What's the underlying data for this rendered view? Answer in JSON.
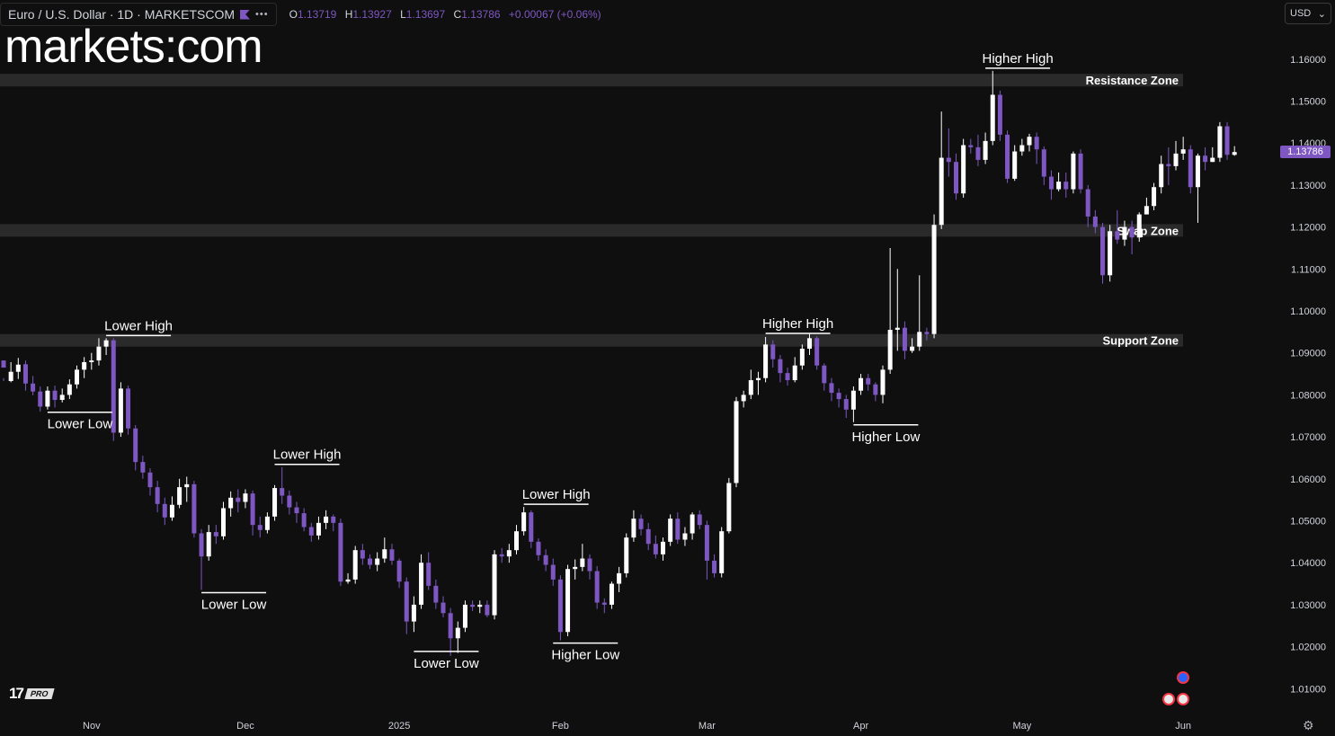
{
  "header": {
    "symbol": "Euro / U.S. Dollar · 1D · MARKETSCOM",
    "ohlc": {
      "o_label": "O",
      "o": "1.13719",
      "h_label": "H",
      "h": "1.13927",
      "l_label": "L",
      "l": "1.13697",
      "c_label": "C",
      "c": "1.13786",
      "change": "+0.00067 (+0.06%)"
    }
  },
  "logo_text": "markets:com",
  "currency_select": {
    "value": "USD",
    "icon": "chevron-down-icon"
  },
  "last_price": "1.13786",
  "branding": {
    "tv_pro": "PRO"
  },
  "colors": {
    "background": "#0f0f0f",
    "bull": "#ffffff",
    "bear": "#7e57c2",
    "zone": "#2a2a2a",
    "accent": "#7e57c2"
  },
  "chart_data": {
    "type": "candlestick",
    "title": "",
    "ylim": [
      1.0,
      1.17
    ],
    "y_ticks": [
      "1.16000",
      "1.15000",
      "1.14000",
      "1.13000",
      "1.12000",
      "1.11000",
      "1.10000",
      "1.09000",
      "1.08000",
      "1.07000",
      "1.06000",
      "1.05000",
      "1.04000",
      "1.03000",
      "1.02000",
      "1.01000"
    ],
    "x_ticks": [
      {
        "label": "Nov",
        "index": 12
      },
      {
        "label": "Dec",
        "index": 33
      },
      {
        "label": "2025",
        "index": 54
      },
      {
        "label": "Feb",
        "index": 76
      },
      {
        "label": "Mar",
        "index": 96
      },
      {
        "label": "Apr",
        "index": 117
      },
      {
        "label": "May",
        "index": 139
      },
      {
        "label": "Jun",
        "index": 161
      }
    ],
    "zones": [
      {
        "label": "Resistance Zone",
        "low": 1.1535,
        "high": 1.1565
      },
      {
        "label": "Swap Zone",
        "low": 1.1177,
        "high": 1.1207
      },
      {
        "label": "Support Zone",
        "low": 1.0915,
        "high": 1.0945
      }
    ],
    "annotations": [
      {
        "label": "Lower Low",
        "index": 6,
        "price": 1.0765,
        "pos": "below"
      },
      {
        "label": "Lower High",
        "index": 14,
        "price": 1.0935,
        "pos": "above"
      },
      {
        "label": "Lower Low",
        "index": 27,
        "price": 1.0335,
        "pos": "below"
      },
      {
        "label": "Lower High",
        "index": 37,
        "price": 1.0628,
        "pos": "above"
      },
      {
        "label": "Lower Low",
        "index": 56,
        "price": 1.0195,
        "pos": "below"
      },
      {
        "label": "Lower High",
        "index": 71,
        "price": 1.0533,
        "pos": "above"
      },
      {
        "label": "Higher Low",
        "index": 75,
        "price": 1.0215,
        "pos": "below"
      },
      {
        "label": "Higher High",
        "index": 104,
        "price": 1.094,
        "pos": "above"
      },
      {
        "label": "Higher Low",
        "index": 116,
        "price": 1.0735,
        "pos": "below"
      },
      {
        "label": "Higher High",
        "index": 134,
        "price": 1.1572,
        "pos": "above"
      }
    ],
    "candles": [
      [
        1.0882,
        1.0865,
        1.084,
        1.0833
      ],
      [
        1.0833,
        1.0855,
        1.0878,
        1.083
      ],
      [
        1.0855,
        1.0872,
        1.0888,
        1.0838
      ],
      [
        1.0873,
        1.0827,
        1.0882,
        1.081
      ],
      [
        1.0827,
        1.0808,
        1.0845,
        1.0799
      ],
      [
        1.0808,
        1.0772,
        1.082,
        1.076
      ],
      [
        1.0772,
        1.081,
        1.082,
        1.0765
      ],
      [
        1.081,
        1.0788,
        1.0822,
        1.077
      ],
      [
        1.0788,
        1.08,
        1.0815,
        1.0782
      ],
      [
        1.08,
        1.0825,
        1.0837,
        1.079
      ],
      [
        1.0825,
        1.086,
        1.087,
        1.0815
      ],
      [
        1.086,
        1.0878,
        1.089,
        1.084
      ],
      [
        1.0878,
        1.0882,
        1.09,
        1.086
      ],
      [
        1.0882,
        1.0915,
        1.0935,
        1.087
      ],
      [
        1.0915,
        1.093,
        1.0935,
        1.0895
      ],
      [
        1.093,
        1.071,
        1.0935,
        1.069
      ],
      [
        1.071,
        1.0815,
        1.083,
        1.07
      ],
      [
        1.0815,
        1.072,
        1.0822,
        1.0705
      ],
      [
        1.072,
        1.064,
        1.0728,
        1.062
      ],
      [
        1.064,
        1.0615,
        1.0655,
        1.06
      ],
      [
        1.0615,
        1.058,
        1.0625,
        1.056
      ],
      [
        1.058,
        1.054,
        1.0595,
        1.052
      ],
      [
        1.054,
        1.0508,
        1.0555,
        1.049
      ],
      [
        1.0508,
        1.0538,
        1.0558,
        1.05
      ],
      [
        1.0538,
        1.058,
        1.06,
        1.053
      ],
      [
        1.058,
        1.0587,
        1.0605,
        1.0545
      ],
      [
        1.0587,
        1.047,
        1.0595,
        1.046
      ],
      [
        1.047,
        1.0415,
        1.048,
        1.0335
      ],
      [
        1.0415,
        1.0473,
        1.049,
        1.0405
      ],
      [
        1.0473,
        1.0463,
        1.049,
        1.0445
      ],
      [
        1.0463,
        1.053,
        1.0545,
        1.0455
      ],
      [
        1.053,
        1.0555,
        1.057,
        1.051
      ],
      [
        1.0555,
        1.0545,
        1.0575,
        1.052
      ],
      [
        1.0545,
        1.0565,
        1.0575,
        1.053
      ],
      [
        1.0565,
        1.049,
        1.0572,
        1.0465
      ],
      [
        1.049,
        1.0478,
        1.051,
        1.046
      ],
      [
        1.0478,
        1.051,
        1.052,
        1.047
      ],
      [
        1.051,
        1.0578,
        1.0585,
        1.05
      ],
      [
        1.0578,
        1.056,
        1.0628,
        1.054
      ],
      [
        1.056,
        1.0532,
        1.0572,
        1.0515
      ],
      [
        1.0532,
        1.0518,
        1.0545,
        1.0495
      ],
      [
        1.0518,
        1.0485,
        1.053,
        1.0475
      ],
      [
        1.0485,
        1.0465,
        1.0495,
        1.045
      ],
      [
        1.0465,
        1.0495,
        1.051,
        1.0455
      ],
      [
        1.0495,
        1.051,
        1.0525,
        1.048
      ],
      [
        1.051,
        1.0495,
        1.0515,
        1.0475
      ],
      [
        1.0495,
        1.0355,
        1.0505,
        1.0345
      ],
      [
        1.0355,
        1.036,
        1.0375,
        1.035
      ],
      [
        1.036,
        1.043,
        1.044,
        1.035
      ],
      [
        1.043,
        1.041,
        1.0445,
        1.0395
      ],
      [
        1.041,
        1.0395,
        1.042,
        1.0385
      ],
      [
        1.0395,
        1.041,
        1.0425,
        1.038
      ],
      [
        1.041,
        1.0432,
        1.046,
        1.04
      ],
      [
        1.0432,
        1.0405,
        1.0445,
        1.0395
      ],
      [
        1.0405,
        1.0355,
        1.041,
        1.034
      ],
      [
        1.0355,
        1.026,
        1.0365,
        1.023
      ],
      [
        1.026,
        1.03,
        1.032,
        1.0235
      ],
      [
        1.03,
        1.04,
        1.042,
        1.029
      ],
      [
        1.04,
        1.0345,
        1.0425,
        1.0335
      ],
      [
        1.0345,
        1.0305,
        1.036,
        1.029
      ],
      [
        1.0305,
        1.028,
        1.032,
        1.027
      ],
      [
        1.028,
        1.022,
        1.0292,
        1.0178
      ],
      [
        1.022,
        1.0245,
        1.026,
        1.0185
      ],
      [
        1.0245,
        1.03,
        1.031,
        1.0235
      ],
      [
        1.03,
        1.0295,
        1.031,
        1.0285
      ],
      [
        1.0295,
        1.03,
        1.031,
        1.028
      ],
      [
        1.03,
        1.0275,
        1.031,
        1.027
      ],
      [
        1.0275,
        1.042,
        1.043,
        1.0265
      ],
      [
        1.042,
        1.0415,
        1.0435,
        1.04
      ],
      [
        1.0415,
        1.043,
        1.0445,
        1.04
      ],
      [
        1.043,
        1.0475,
        1.049,
        1.042
      ],
      [
        1.0475,
        1.052,
        1.0533,
        1.0465
      ],
      [
        1.052,
        1.045,
        1.0525,
        1.0435
      ],
      [
        1.045,
        1.0418,
        1.0458,
        1.0405
      ],
      [
        1.0418,
        1.0395,
        1.0432,
        1.038
      ],
      [
        1.0395,
        1.036,
        1.041,
        1.0345
      ],
      [
        1.036,
        1.0235,
        1.037,
        1.0215
      ],
      [
        1.0235,
        1.0385,
        1.0395,
        1.0225
      ],
      [
        1.0385,
        1.039,
        1.0408,
        1.036
      ],
      [
        1.039,
        1.041,
        1.0445,
        1.038
      ],
      [
        1.041,
        1.038,
        1.042,
        1.036
      ],
      [
        1.038,
        1.0305,
        1.0392,
        1.029
      ],
      [
        1.0305,
        1.03,
        1.0315,
        1.028
      ],
      [
        1.03,
        1.035,
        1.0355,
        1.029
      ],
      [
        1.035,
        1.0375,
        1.039,
        1.033
      ],
      [
        1.0375,
        1.046,
        1.047,
        1.0365
      ],
      [
        1.046,
        1.0505,
        1.0525,
        1.045
      ],
      [
        1.0505,
        1.048,
        1.0515,
        1.0465
      ],
      [
        1.048,
        1.0445,
        1.0495,
        1.043
      ],
      [
        1.0445,
        1.042,
        1.0465,
        1.041
      ],
      [
        1.042,
        1.045,
        1.046,
        1.0405
      ],
      [
        1.045,
        1.0505,
        1.0515,
        1.044
      ],
      [
        1.0505,
        1.0455,
        1.052,
        1.0445
      ],
      [
        1.0455,
        1.047,
        1.0485,
        1.044
      ],
      [
        1.047,
        1.0515,
        1.052,
        1.0455
      ],
      [
        1.0515,
        1.049,
        1.0525,
        1.048
      ],
      [
        1.049,
        1.0405,
        1.05,
        1.036
      ],
      [
        1.0405,
        1.0375,
        1.042,
        1.0365
      ],
      [
        1.0375,
        1.0475,
        1.0485,
        1.0365
      ],
      [
        1.0475,
        1.059,
        1.0602,
        1.047
      ],
      [
        1.059,
        1.0785,
        1.0795,
        1.058
      ],
      [
        1.0785,
        1.08,
        1.081,
        1.077
      ],
      [
        1.08,
        1.0835,
        1.086,
        1.079
      ],
      [
        1.0835,
        1.084,
        1.0855,
        1.08
      ],
      [
        1.084,
        1.092,
        1.0938,
        1.083
      ],
      [
        1.092,
        1.0885,
        1.093,
        1.0865
      ],
      [
        1.0885,
        1.0852,
        1.0895,
        1.083
      ],
      [
        1.0852,
        1.0835,
        1.0865,
        1.0822
      ],
      [
        1.0835,
        1.087,
        1.089,
        1.083
      ],
      [
        1.087,
        1.091,
        1.092,
        1.086
      ],
      [
        1.091,
        1.0935,
        1.0945,
        1.0895
      ],
      [
        1.0935,
        1.087,
        1.094,
        1.086
      ],
      [
        1.087,
        1.0828,
        1.0875,
        1.081
      ],
      [
        1.0828,
        1.0805,
        1.084,
        1.0785
      ],
      [
        1.0805,
        1.079,
        1.0815,
        1.077
      ],
      [
        1.079,
        1.0765,
        1.08,
        1.0745
      ],
      [
        1.0765,
        1.081,
        1.082,
        1.0735
      ],
      [
        1.081,
        1.084,
        1.085,
        1.08
      ],
      [
        1.084,
        1.0825,
        1.085,
        1.081
      ],
      [
        1.0825,
        1.08,
        1.083,
        1.0785
      ],
      [
        1.08,
        1.086,
        1.087,
        1.078
      ],
      [
        1.086,
        1.0955,
        1.115,
        1.085
      ],
      [
        1.0955,
        1.096,
        1.11,
        1.0905
      ],
      [
        1.096,
        1.0905,
        1.0975,
        1.0885
      ],
      [
        1.0905,
        1.0915,
        1.0935,
        1.09
      ],
      [
        1.0915,
        1.095,
        1.1085,
        1.0905
      ],
      [
        1.095,
        1.0945,
        1.096,
        1.093
      ],
      [
        1.0945,
        1.1205,
        1.123,
        1.0935
      ],
      [
        1.1205,
        1.1365,
        1.1475,
        1.1195
      ],
      [
        1.1365,
        1.1355,
        1.1435,
        1.132
      ],
      [
        1.1355,
        1.128,
        1.1375,
        1.1265
      ],
      [
        1.128,
        1.1395,
        1.141,
        1.127
      ],
      [
        1.1395,
        1.139,
        1.141,
        1.1375
      ],
      [
        1.139,
        1.136,
        1.142,
        1.1345
      ],
      [
        1.136,
        1.1405,
        1.1425,
        1.135
      ],
      [
        1.1405,
        1.1515,
        1.1572,
        1.1395
      ],
      [
        1.1515,
        1.142,
        1.1525,
        1.1405
      ],
      [
        1.142,
        1.1315,
        1.143,
        1.1305
      ],
      [
        1.1315,
        1.138,
        1.1395,
        1.131
      ],
      [
        1.138,
        1.1395,
        1.141,
        1.137
      ],
      [
        1.1395,
        1.1415,
        1.1422,
        1.138
      ],
      [
        1.1415,
        1.1385,
        1.1425,
        1.135
      ],
      [
        1.1385,
        1.132,
        1.1392,
        1.13
      ],
      [
        1.132,
        1.129,
        1.1335,
        1.1265
      ],
      [
        1.129,
        1.1308,
        1.133,
        1.1285
      ],
      [
        1.1308,
        1.129,
        1.133,
        1.127
      ],
      [
        1.129,
        1.1375,
        1.138,
        1.128
      ],
      [
        1.1375,
        1.129,
        1.1385,
        1.128
      ],
      [
        1.129,
        1.1225,
        1.13,
        1.12
      ],
      [
        1.1225,
        1.12,
        1.124,
        1.1185
      ],
      [
        1.12,
        1.1085,
        1.121,
        1.1065
      ],
      [
        1.1085,
        1.119,
        1.1205,
        1.107
      ],
      [
        1.119,
        1.117,
        1.124,
        1.116
      ],
      [
        1.117,
        1.12,
        1.1215,
        1.1155
      ],
      [
        1.12,
        1.1175,
        1.1215,
        1.1135
      ],
      [
        1.1175,
        1.123,
        1.1235,
        1.1165
      ],
      [
        1.123,
        1.125,
        1.127,
        1.123
      ],
      [
        1.125,
        1.1295,
        1.1305,
        1.124
      ],
      [
        1.1295,
        1.135,
        1.137,
        1.128
      ],
      [
        1.135,
        1.1345,
        1.139,
        1.13
      ],
      [
        1.1345,
        1.1375,
        1.1405,
        1.1335
      ],
      [
        1.1375,
        1.1385,
        1.1415,
        1.136
      ],
      [
        1.1385,
        1.1295,
        1.1395,
        1.128
      ],
      [
        1.1295,
        1.137,
        1.1375,
        1.121
      ],
      [
        1.137,
        1.1355,
        1.139,
        1.1335
      ],
      [
        1.1355,
        1.1365,
        1.139,
        1.1355
      ],
      [
        1.1365,
        1.144,
        1.145,
        1.1355
      ],
      [
        1.144,
        1.1372,
        1.145,
        1.136
      ],
      [
        1.13719,
        1.13786,
        1.13927,
        1.13697
      ]
    ]
  }
}
